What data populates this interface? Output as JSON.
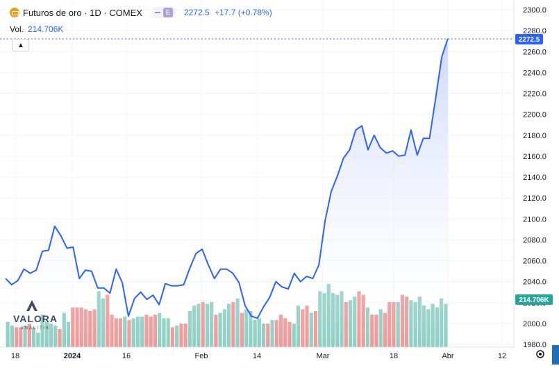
{
  "legend": {
    "symbol_title": "Futuros de oro · 1D · COMEX",
    "badge_letter": "E",
    "last_price": "2272.5",
    "change": "+17.7 (+0.78%)",
    "vol_label": "Vol.",
    "vol_value": "214.706K"
  },
  "watermark": {
    "brand": "VALORA",
    "sub": "ANALITIK"
  },
  "price_tag": "2272.5",
  "volume_tag": "214.706K",
  "colors": {
    "line": "#2962ff",
    "area_top": "#c7d2fa",
    "up_vol": "#8fd0c4",
    "down_vol": "#ef9a9a",
    "accent": "#2962ff"
  },
  "chart_data": {
    "type": "area",
    "title": "Futuros de oro · 1D · COMEX",
    "xlabel": "",
    "ylabel": "",
    "ylim": [
      1980,
      2300
    ],
    "y_ticks": [
      1980,
      2000,
      2020,
      2040,
      2060,
      2080,
      2100,
      2120,
      2140,
      2160,
      2180,
      2200,
      2220,
      2240,
      2260,
      2280,
      2300
    ],
    "x_tick_labels": [
      "18",
      "2024",
      "16",
      "Feb",
      "14",
      "Mar",
      "18",
      "Abr",
      "12"
    ],
    "grid": true,
    "series": [
      {
        "values": [
          2043,
          2037,
          2041,
          2052,
          2048,
          2051,
          2069,
          2070,
          2093,
          2084,
          2072,
          2073,
          2043,
          2051,
          2050,
          2034,
          2034,
          2029,
          2052,
          2039,
          2007,
          2024,
          2030,
          2023,
          2027,
          2018,
          2038,
          2036,
          2036,
          2037,
          2053,
          2067,
          2071,
          2056,
          2043,
          2052,
          2052,
          2048,
          2039,
          2017,
          2007,
          2005,
          2016,
          2025,
          2040,
          2035,
          2033,
          2048,
          2040,
          2045,
          2043,
          2056,
          2098,
          2126,
          2141,
          2158,
          2166,
          2185,
          2189,
          2166,
          2180,
          2168,
          2163,
          2165,
          2160,
          2161,
          2185,
          2161,
          2177,
          2177,
          2215,
          2255,
          2272.5
        ]
      }
    ],
    "volume_pct": [
      28,
      24,
      22,
      22,
      24,
      26,
      22,
      16,
      36,
      28,
      26,
      24,
      20,
      38,
      28,
      44,
      44,
      44,
      42,
      40,
      42,
      62,
      54,
      58,
      36,
      32,
      32,
      34,
      30,
      32,
      34,
      34,
      36,
      34,
      36,
      38,
      32,
      32,
      22,
      24,
      26,
      26,
      40,
      46,
      48,
      50,
      48,
      50,
      36,
      38,
      42,
      48,
      50,
      54,
      38,
      42,
      40,
      30,
      32,
      26,
      26,
      30,
      30,
      36,
      32,
      28,
      26,
      46,
      42,
      46,
      38,
      40,
      62,
      60,
      70,
      60,
      58,
      62,
      50,
      52,
      56,
      62,
      58,
      44,
      36,
      36,
      42,
      38,
      50,
      50,
      50,
      58,
      56,
      52,
      50,
      56,
      46,
      42,
      48,
      44,
      54,
      48
    ],
    "volume_up": [
      1,
      1,
      0,
      0,
      1,
      0,
      1,
      1,
      1,
      1,
      1,
      1,
      0,
      1,
      1,
      0,
      0,
      0,
      0,
      0,
      0,
      1,
      1,
      0,
      0,
      0,
      0,
      1,
      0,
      1,
      1,
      1,
      0,
      0,
      0,
      1,
      1,
      1,
      0,
      1,
      0,
      0,
      1,
      1,
      1,
      0,
      1,
      1,
      0,
      1,
      1,
      1,
      0,
      1,
      0,
      1,
      1,
      1,
      1,
      1,
      0,
      1,
      0,
      0,
      0,
      0,
      1,
      1,
      0,
      0,
      1,
      0,
      1,
      1,
      1,
      1,
      1,
      1,
      0,
      1,
      1,
      0,
      0,
      1,
      0,
      0,
      1,
      0,
      0,
      0,
      1,
      0,
      0,
      1,
      1,
      1,
      1,
      1,
      1,
      1,
      1,
      1
    ]
  }
}
